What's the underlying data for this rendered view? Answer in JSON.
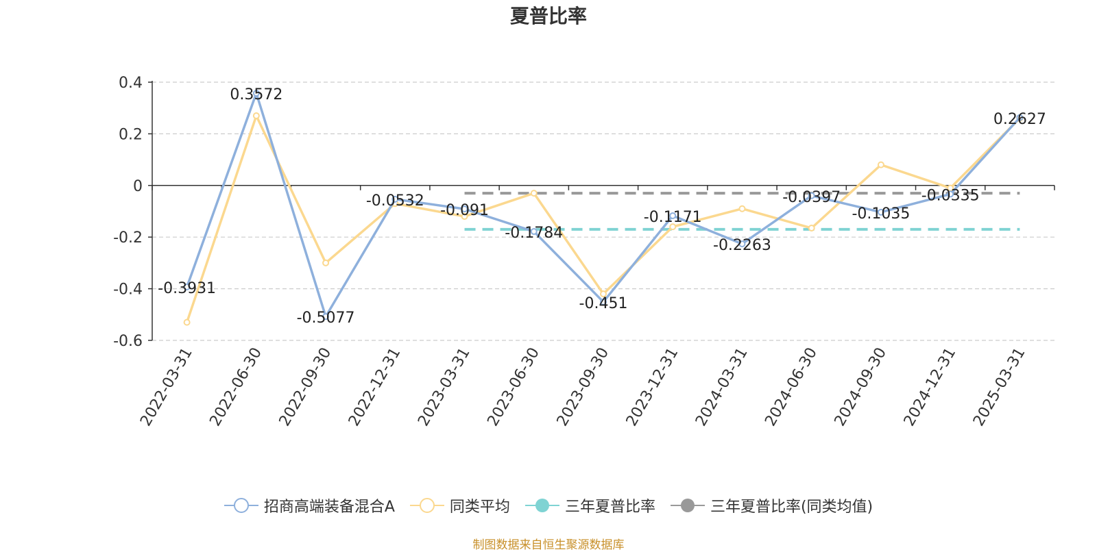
{
  "chart_data": {
    "type": "line",
    "title": "夏普比率",
    "categories": [
      "2022-03-31",
      "2022-06-30",
      "2022-09-30",
      "2022-12-31",
      "2023-03-31",
      "2023-06-30",
      "2023-09-30",
      "2023-12-31",
      "2024-03-31",
      "2024-06-30",
      "2024-09-30",
      "2024-12-31",
      "2025-03-31"
    ],
    "series": [
      {
        "name": "招商高端装备混合A",
        "color": "#8eb0dc",
        "values": [
          -0.3931,
          0.3572,
          -0.5077,
          -0.0532,
          -0.091,
          -0.1784,
          -0.451,
          -0.1171,
          -0.2263,
          -0.0397,
          -0.1035,
          -0.0335,
          0.2627
        ],
        "labels": [
          "-0.3931",
          "0.3572",
          "-0.5077",
          "-0.0532",
          "-0.091",
          "-0.1784",
          "-0.451",
          "-0.1171",
          "-0.2263",
          "-0.0397",
          "-0.1035",
          "-0.0335",
          "0.2627"
        ]
      },
      {
        "name": "同类平均",
        "color": "#fbd88f",
        "values": [
          -0.53,
          0.27,
          -0.3,
          -0.07,
          -0.12,
          -0.03,
          -0.42,
          -0.16,
          -0.09,
          -0.165,
          0.08,
          -0.01,
          0.26
        ]
      }
    ],
    "reference_lines": [
      {
        "name": "三年夏普比率",
        "color": "#7fd3d3",
        "value": -0.17,
        "from": "2023-03-31",
        "to": "2025-03-31"
      },
      {
        "name": "三年夏普比率(同类均值)",
        "color": "#999999",
        "value": -0.03,
        "from": "2023-03-31",
        "to": "2025-03-31"
      }
    ],
    "ylim": [
      -0.6,
      0.4
    ],
    "yticks": [
      0.4,
      0.2,
      0,
      -0.2,
      -0.4,
      -0.6
    ],
    "ytick_labels": [
      "0.4",
      "0.2",
      "0",
      "-0.2",
      "-0.4",
      "-0.6"
    ],
    "grid": true,
    "legend_position": "bottom-center"
  },
  "legend": [
    {
      "label": "招商高端装备混合A",
      "color": "#8eb0dc",
      "marker": "hollow-circle"
    },
    {
      "label": "同类平均",
      "color": "#fbd88f",
      "marker": "hollow-circle"
    },
    {
      "label": "三年夏普比率",
      "color": "#7fd3d3",
      "marker": "filled-circle"
    },
    {
      "label": "三年夏普比率(同类均值)",
      "color": "#999999",
      "marker": "filled-circle"
    }
  ],
  "source_note": "制图数据来自恒生聚源数据库"
}
